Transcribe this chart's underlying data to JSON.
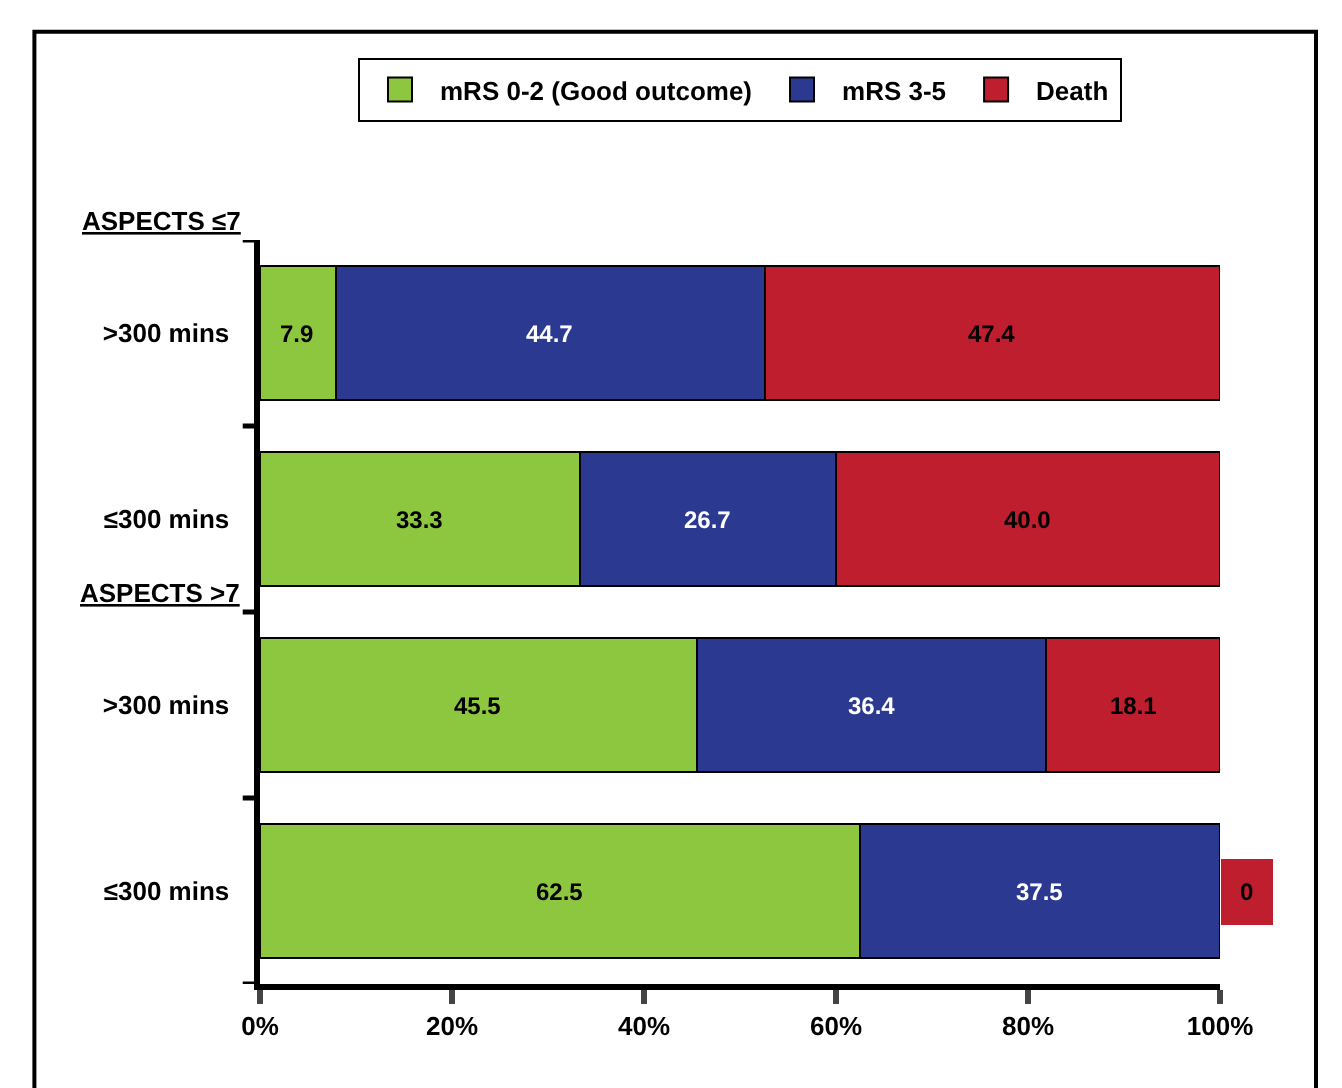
{
  "chart_data": {
    "type": "bar",
    "orientation": "horizontal",
    "stacked": true,
    "categories": [
      ">300 mins",
      "≤300 mins",
      ">300 mins",
      "≤300 mins"
    ],
    "series": [
      {
        "name": "mRS 0-2 (Good outcome)",
        "color": "#8dc63f",
        "values": [
          7.9,
          33.3,
          45.5,
          62.5
        ],
        "value_labels": [
          "7.9",
          "33.3",
          "45.5",
          "62.5"
        ]
      },
      {
        "name": "mRS 3-5",
        "color": "#2b3990",
        "values": [
          44.7,
          26.7,
          36.4,
          37.5
        ],
        "value_labels": [
          "44.7",
          "26.7",
          "36.4",
          "37.5"
        ]
      },
      {
        "name": "Death",
        "color": "#be1e2d",
        "values": [
          47.4,
          40.0,
          18.1,
          0
        ],
        "value_labels": [
          "47.4",
          "40.0",
          "18.1",
          "0"
        ]
      }
    ],
    "xlim": [
      0,
      100
    ],
    "xticks": [
      {
        "value": 0,
        "label": "0%"
      },
      {
        "value": 20,
        "label": "20%"
      },
      {
        "value": 40,
        "label": "40%"
      },
      {
        "value": 60,
        "label": "60%"
      },
      {
        "value": 80,
        "label": "80%"
      },
      {
        "value": 100,
        "label": "100%"
      }
    ],
    "annotations": [
      "ASPECTS ≤7",
      "ASPECTS >7"
    ],
    "legend": "top"
  }
}
